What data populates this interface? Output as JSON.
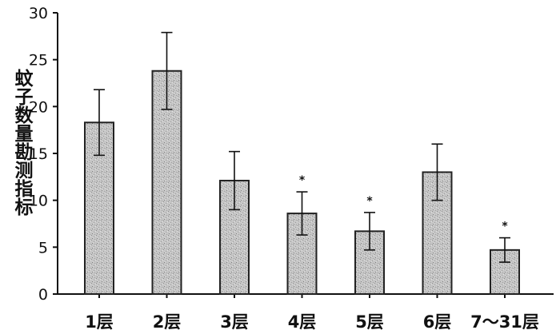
{
  "chart_data": {
    "type": "bar",
    "title": "",
    "xlabel": "",
    "ylabel": "蚊子数量勘测指标",
    "ylim": [
      0,
      30
    ],
    "yticks": [
      0,
      5,
      10,
      15,
      20,
      25,
      30
    ],
    "grid": false,
    "legend": "none",
    "categories": [
      "1层",
      "2层",
      "3层",
      "4层",
      "5层",
      "6层",
      "7～31层"
    ],
    "values": [
      18.3,
      23.8,
      12.1,
      8.6,
      6.7,
      13.0,
      4.7
    ],
    "error": [
      3.5,
      4.1,
      3.1,
      2.3,
      2.0,
      3.0,
      1.3
    ],
    "significance": [
      "",
      "",
      "",
      "*",
      "*",
      "",
      "*"
    ],
    "bar_color": "#c4c4c4",
    "bar_edge_color": "#222222"
  }
}
